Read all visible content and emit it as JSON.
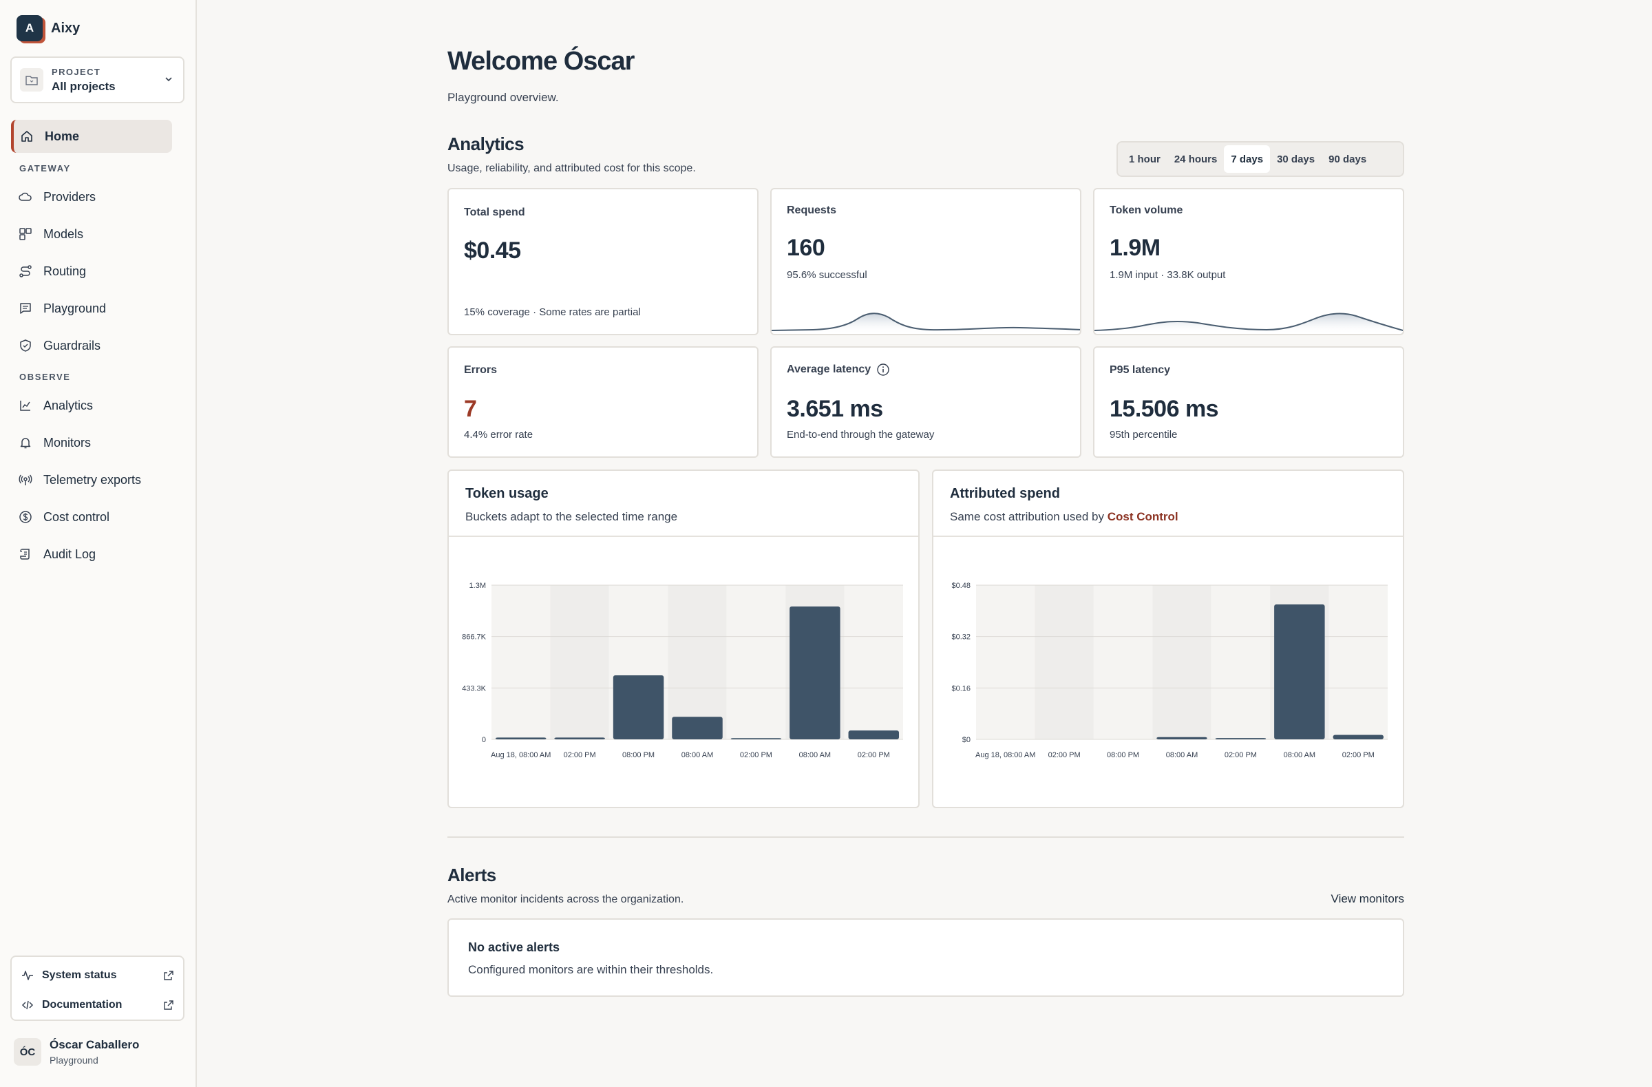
{
  "brand": {
    "initial": "A",
    "name": "Aixy"
  },
  "project": {
    "label": "PROJECT",
    "value": "All projects"
  },
  "nav": {
    "home": "Home",
    "gateway_section": "GATEWAY",
    "providers": "Providers",
    "models": "Models",
    "routing": "Routing",
    "playground": "Playground",
    "guardrails": "Guardrails",
    "observe_section": "OBSERVE",
    "analytics": "Analytics",
    "monitors": "Monitors",
    "telemetry": "Telemetry exports",
    "cost_control": "Cost control",
    "audit_log": "Audit Log"
  },
  "footer": {
    "system_status": "System status",
    "documentation": "Documentation"
  },
  "user": {
    "initials": "ÓC",
    "name": "Óscar Caballero",
    "workspace": "Playground"
  },
  "page": {
    "title": "Welcome Óscar",
    "subtitle": "Playground overview."
  },
  "analytics": {
    "title": "Analytics",
    "subtitle": "Usage, reliability, and attributed cost for this scope.",
    "ranges": [
      "1 hour",
      "24 hours",
      "7 days",
      "30 days",
      "90 days"
    ],
    "selected_range": "7 days"
  },
  "metrics": {
    "total_spend": {
      "label": "Total spend",
      "value": "$0.45",
      "foot": "15% coverage · Some rates are partial"
    },
    "requests": {
      "label": "Requests",
      "value": "160",
      "foot": "95.6% successful"
    },
    "token_volume": {
      "label": "Token volume",
      "value": "1.9M",
      "foot": "1.9M input · 33.8K output"
    },
    "errors": {
      "label": "Errors",
      "value": "7",
      "foot": "4.4% error rate"
    },
    "avg_latency": {
      "label": "Average latency",
      "value": "3.651 ms",
      "foot": "End-to-end through the gateway"
    },
    "p95_latency": {
      "label": "P95 latency",
      "value": "15.506 ms",
      "foot": "95th percentile"
    }
  },
  "colors": {
    "accent": "#b2452e",
    "bar": "#3f5468",
    "error": "#9c3a26"
  },
  "token_chart": {
    "title": "Token usage",
    "subtitle": "Buckets adapt to the selected time range"
  },
  "spend_chart": {
    "title": "Attributed spend",
    "subtitle_prefix": "Same cost attribution used by",
    "subtitle_link": "Cost Control"
  },
  "chart_data": [
    {
      "type": "bar",
      "title": "Token usage",
      "categories": [
        "Aug 18, 08:00 AM",
        "02:00 PM",
        "08:00 PM",
        "08:00 AM",
        "02:00 PM",
        "08:00 AM",
        "02:00 PM"
      ],
      "values": [
        15000,
        15000,
        540000,
        190000,
        10000,
        1120000,
        75000
      ],
      "y_ticks": [
        "0",
        "433.3K",
        "866.7K",
        "1.3M"
      ],
      "ylim": [
        0,
        1300000
      ]
    },
    {
      "type": "bar",
      "title": "Attributed spend",
      "categories": [
        "Aug 18, 08:00 AM",
        "02:00 PM",
        "08:00 PM",
        "08:00 AM",
        "02:00 PM",
        "08:00 AM",
        "02:00 PM"
      ],
      "values": [
        0,
        0,
        0,
        0.007,
        0.004,
        0.42,
        0.014
      ],
      "y_ticks": [
        "$0",
        "$0.16",
        "$0.32",
        "$0.48"
      ],
      "ylim": [
        0,
        0.48
      ]
    }
  ],
  "alerts": {
    "title": "Alerts",
    "subtitle": "Active monitor incidents across the organization.",
    "view_link": "View monitors",
    "empty_title": "No active alerts",
    "empty_sub": "Configured monitors are within their thresholds."
  }
}
